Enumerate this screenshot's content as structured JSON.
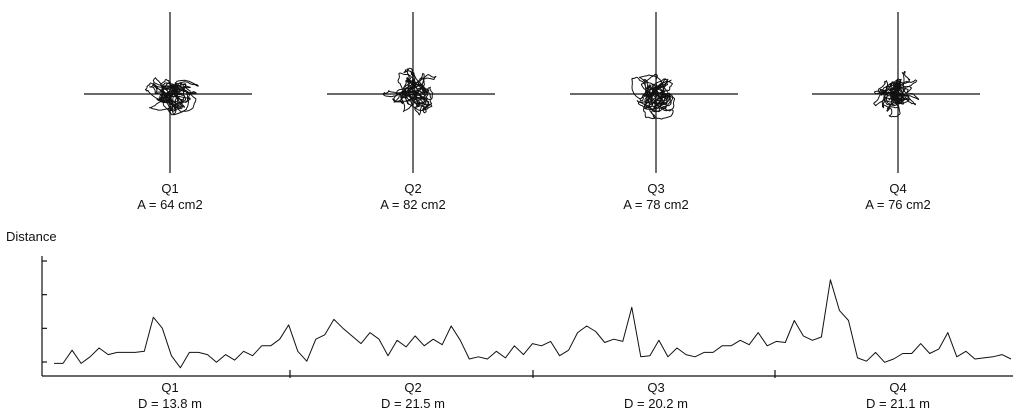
{
  "chart_data": [
    {
      "type": "scatter",
      "subtype": "stabilogram",
      "panels": [
        {
          "quarter": "Q1",
          "area_label": "A = 64 cm2",
          "area_cm2": 64
        },
        {
          "quarter": "Q2",
          "area_label": "A = 82 cm2",
          "area_cm2": 82
        },
        {
          "quarter": "Q3",
          "area_label": "A = 78 cm2",
          "area_cm2": 78
        },
        {
          "quarter": "Q4",
          "area_label": "A = 76 cm2",
          "area_cm2": 76
        }
      ]
    },
    {
      "type": "line",
      "ylabel": "Distance",
      "y_ticks_shown": 4,
      "x_label_sections": [
        {
          "quarter": "Q1",
          "distance_label": "D = 13.8 m",
          "distance_m": 13.8
        },
        {
          "quarter": "Q2",
          "distance_label": "D = 21.5 m",
          "distance_m": 21.5
        },
        {
          "quarter": "Q3",
          "distance_label": "D = 20.2 m",
          "distance_m": 20.2
        },
        {
          "quarter": "Q4",
          "distance_label": "D = 21.1 m",
          "distance_m": 21.1
        }
      ],
      "ylim": [
        0,
        1
      ],
      "values": [
        0.06,
        0.06,
        0.18,
        0.06,
        0.12,
        0.2,
        0.14,
        0.16,
        0.16,
        0.16,
        0.17,
        0.48,
        0.38,
        0.13,
        0.02,
        0.16,
        0.16,
        0.14,
        0.07,
        0.14,
        0.09,
        0.17,
        0.13,
        0.22,
        0.22,
        0.28,
        0.41,
        0.17,
        0.08,
        0.28,
        0.32,
        0.46,
        0.38,
        0.31,
        0.24,
        0.34,
        0.28,
        0.13,
        0.27,
        0.21,
        0.31,
        0.22,
        0.28,
        0.23,
        0.4,
        0.27,
        0.1,
        0.12,
        0.1,
        0.17,
        0.11,
        0.22,
        0.14,
        0.24,
        0.22,
        0.26,
        0.13,
        0.18,
        0.34,
        0.4,
        0.35,
        0.25,
        0.28,
        0.26,
        0.57,
        0.12,
        0.13,
        0.27,
        0.12,
        0.2,
        0.14,
        0.12,
        0.16,
        0.16,
        0.22,
        0.22,
        0.27,
        0.23,
        0.34,
        0.22,
        0.26,
        0.25,
        0.45,
        0.31,
        0.27,
        0.3,
        0.82,
        0.54,
        0.45,
        0.11,
        0.08,
        0.16,
        0.07,
        0.1,
        0.15,
        0.15,
        0.24,
        0.15,
        0.19,
        0.34,
        0.12,
        0.17,
        0.1,
        0.11,
        0.12,
        0.14,
        0.1
      ]
    }
  ]
}
